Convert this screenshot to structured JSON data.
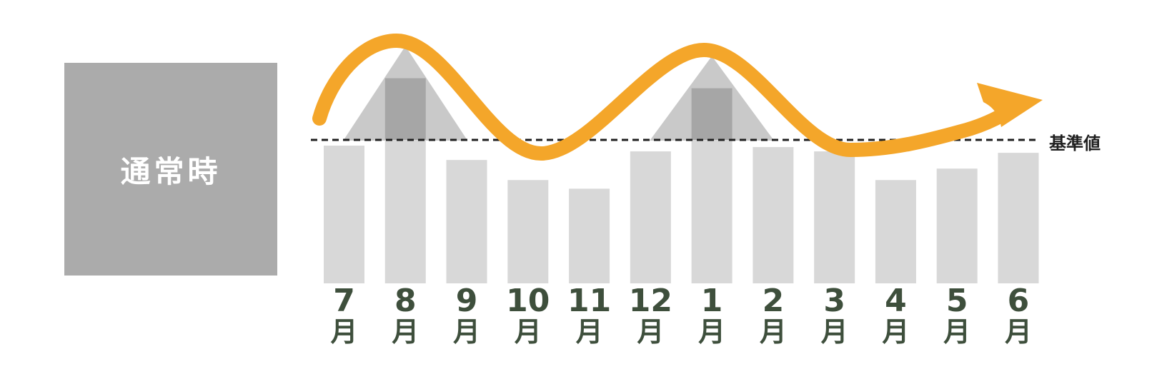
{
  "left_box": {
    "label": "通常時",
    "bg_color": "#ababab",
    "text_color": "#ffffff"
  },
  "baseline": {
    "label": "基準値",
    "value": 100,
    "line_color": "#1f1f1f"
  },
  "chart_data": {
    "type": "bar",
    "categories": [
      "7月",
      "8月",
      "9月",
      "10月",
      "11月",
      "12月",
      "1月",
      "2月",
      "3月",
      "4月",
      "5月",
      "6月"
    ],
    "values": [
      96,
      143,
      86,
      72,
      66,
      92,
      136,
      95,
      92,
      72,
      80,
      91
    ],
    "baseline_value": 100,
    "baseline_label": "基準値",
    "peak_categories": [
      "8月",
      "1月"
    ],
    "ylim": [
      0,
      160
    ],
    "grid": false,
    "legend": "none",
    "bar_color": "#d8d8d8",
    "bar_above_baseline_color": "#a6a6a6",
    "peak_triangle_color": "#c9c9c9",
    "label_color": "#3e4f3c",
    "trend_line": {
      "shape": "seasonal-wave-with-arrow",
      "color": "#f4a62a",
      "peaks_over": [
        "8月",
        "1月"
      ],
      "ends": "rising-arrow-right"
    }
  }
}
